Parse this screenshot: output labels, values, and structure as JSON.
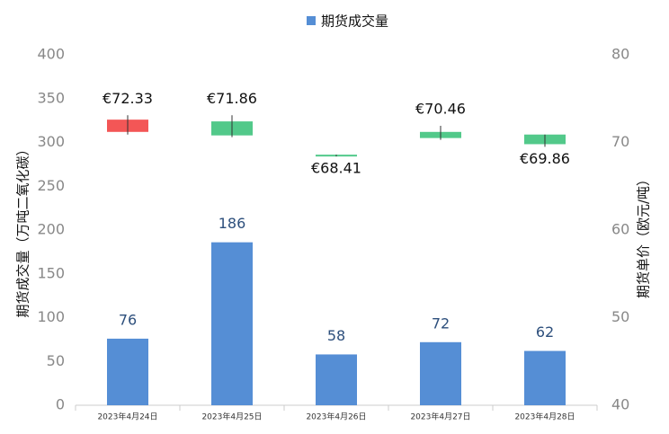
{
  "chart_data": {
    "type": "bar+candlestick",
    "legend": "top",
    "categories": [
      "2023年4月24日",
      "2023年4月25日",
      "2023年4月26日",
      "2023年4月27日",
      "2023年4月28日"
    ],
    "y_label": "期货成交量（万吨二氧化碳）",
    "y2_label": "期货单价（欧元/吨）",
    "ylim": [
      0,
      400
    ],
    "yticks": [
      0,
      50,
      100,
      150,
      200,
      250,
      300,
      350,
      400
    ],
    "y2lim": [
      40,
      80
    ],
    "y2ticks": [
      40,
      50,
      60,
      70,
      80
    ],
    "series": [
      {
        "name": "期货成交量",
        "type": "bar",
        "color": "#558ed5",
        "values": [
          76,
          186,
          58,
          72,
          62
        ]
      },
      {
        "type": "candlestick",
        "axis": "y2",
        "up_color": "#52c98a",
        "down_color": "#f35656",
        "open": [
          72.6,
          70.8,
          68.4,
          70.5,
          69.8
        ],
        "high": [
          73.1,
          73.1,
          68.6,
          71.9,
          70.9
        ],
        "low": [
          70.9,
          70.6,
          68.4,
          70.3,
          69.5
        ],
        "close": [
          71.2,
          72.4,
          68.6,
          71.2,
          70.9
        ],
        "values": [
          72.33,
          71.86,
          68.41,
          70.46,
          69.86
        ],
        "value_labels": [
          "€72.33",
          "€71.86",
          "€68.41",
          "€70.46",
          "€69.86"
        ]
      }
    ]
  }
}
